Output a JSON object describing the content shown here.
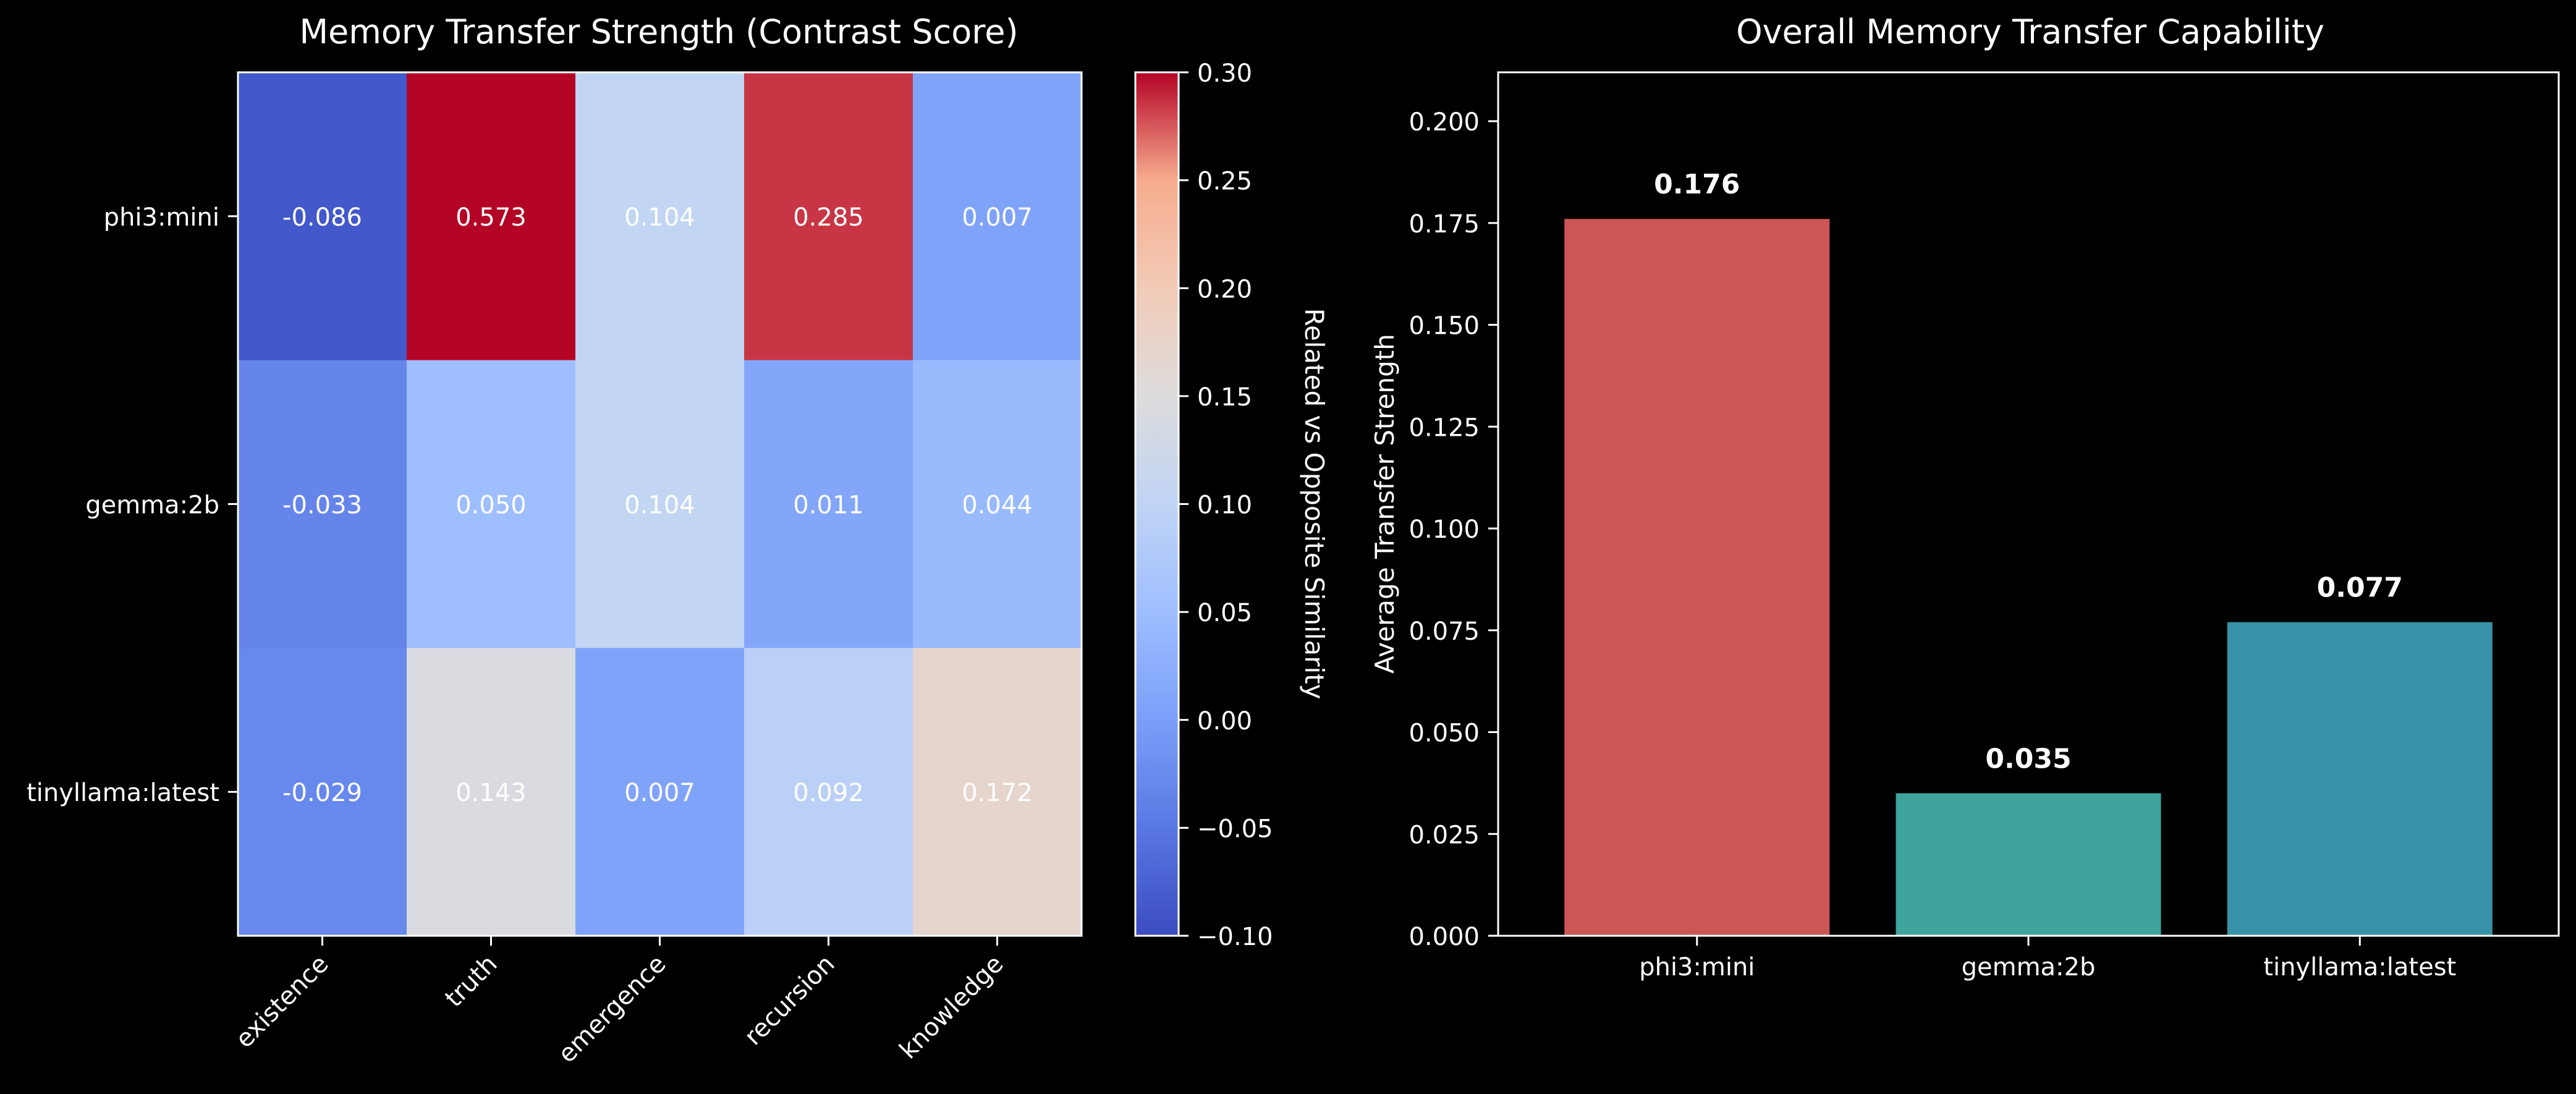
{
  "chart_data": [
    {
      "type": "heatmap",
      "title": "Memory Transfer Strength (Contrast Score)",
      "rows": [
        "phi3:mini",
        "gemma:2b",
        "tinyllama:latest"
      ],
      "columns": [
        "existence",
        "truth",
        "emergence",
        "recursion",
        "knowledge"
      ],
      "values": [
        [
          -0.086,
          0.573,
          0.104,
          0.285,
          0.007
        ],
        [
          -0.033,
          0.05,
          0.104,
          0.011,
          0.044
        ],
        [
          -0.029,
          0.143,
          0.007,
          0.092,
          0.172
        ]
      ],
      "value_labels": [
        [
          "-0.086",
          "0.573",
          "0.104",
          "0.285",
          "0.007"
        ],
        [
          "-0.033",
          "0.050",
          "0.104",
          "0.011",
          "0.044"
        ],
        [
          "-0.029",
          "0.143",
          "0.007",
          "0.092",
          "0.172"
        ]
      ],
      "colormap": "coolwarm",
      "vmin": -0.1,
      "vmax": 0.3,
      "colorbar": {
        "label": "Related vs Opposite Similarity",
        "ticks": [
          -0.1,
          -0.05,
          0.0,
          0.05,
          0.1,
          0.15,
          0.2,
          0.25,
          0.3
        ],
        "tick_labels": [
          "−0.10",
          "−0.05",
          "0.00",
          "0.05",
          "0.10",
          "0.15",
          "0.20",
          "0.25",
          "0.30"
        ]
      }
    },
    {
      "type": "bar",
      "title": "Overall Memory Transfer Capability",
      "categories": [
        "phi3:mini",
        "gemma:2b",
        "tinyllama:latest"
      ],
      "values": [
        0.176,
        0.035,
        0.077
      ],
      "value_labels": [
        "0.176",
        "0.035",
        "0.077"
      ],
      "colors": [
        "#ff6b6b",
        "#4ecdc4",
        "#45b7d1"
      ],
      "xlabel": "",
      "ylabel": "Average Transfer Strength",
      "ylim": [
        0,
        0.212
      ],
      "yticks": [
        0.0,
        0.025,
        0.05,
        0.075,
        0.1,
        0.125,
        0.15,
        0.175,
        0.2
      ],
      "ytick_labels": [
        "0.000",
        "0.025",
        "0.050",
        "0.075",
        "0.100",
        "0.125",
        "0.150",
        "0.175",
        "0.200"
      ],
      "grid": false,
      "legend": "none"
    }
  ]
}
